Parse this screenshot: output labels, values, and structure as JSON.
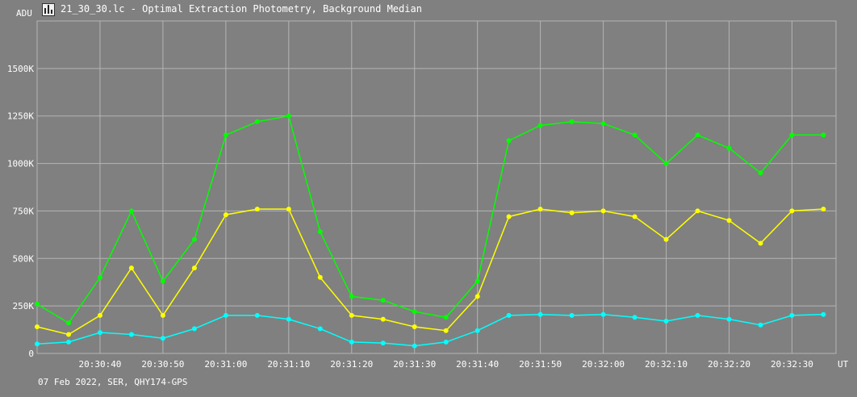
{
  "window": {
    "title": "21_30_30.lc - Optimal Extraction Photometry, Background Median",
    "icon": "light-curve-app-icon"
  },
  "footer": {
    "text": "07 Feb 2022, SER, QHY174-GPS"
  },
  "colors": {
    "background": "#808080",
    "grid": "#b4b4b4",
    "text": "#ffffff",
    "series": [
      "#00ff00",
      "#ffff00",
      "#00ffff"
    ]
  },
  "chart_data": {
    "type": "line",
    "title": "",
    "ylabel": "ADU",
    "xlabel": "UT",
    "ylim": [
      0,
      1750000
    ],
    "xlim": [
      "20:30:30",
      "20:32:37"
    ],
    "grid": true,
    "legend": "none",
    "x_ticks": [
      "20:30:40",
      "20:30:50",
      "20:31:00",
      "20:31:10",
      "20:31:20",
      "20:31:30",
      "20:31:40",
      "20:31:50",
      "20:32:00",
      "20:32:10",
      "20:32:20",
      "20:32:30"
    ],
    "y_ticks": [
      "0",
      "250K",
      "500K",
      "750K",
      "1000K",
      "1250K",
      "1500K"
    ],
    "x": [
      "20:30:30",
      "20:30:35",
      "20:30:40",
      "20:30:45",
      "20:30:50",
      "20:30:55",
      "20:31:00",
      "20:31:05",
      "20:31:10",
      "20:31:15",
      "20:31:20",
      "20:31:25",
      "20:31:30",
      "20:31:35",
      "20:31:40",
      "20:31:45",
      "20:31:50",
      "20:31:55",
      "20:32:00",
      "20:32:05",
      "20:32:10",
      "20:32:15",
      "20:32:20",
      "20:32:25",
      "20:32:30",
      "20:32:35"
    ],
    "series": [
      {
        "color": "#00ff00",
        "values": [
          260000,
          160000,
          400000,
          750000,
          380000,
          600000,
          1150000,
          1220000,
          1250000,
          640000,
          300000,
          280000,
          220000,
          190000,
          380000,
          1120000,
          1200000,
          1220000,
          1210000,
          1150000,
          1000000,
          1150000,
          1080000,
          950000,
          1150000,
          1150000
        ]
      },
      {
        "color": "#ffff00",
        "values": [
          140000,
          100000,
          200000,
          450000,
          200000,
          450000,
          730000,
          760000,
          760000,
          400000,
          200000,
          180000,
          140000,
          120000,
          300000,
          720000,
          760000,
          740000,
          750000,
          720000,
          600000,
          750000,
          700000,
          580000,
          750000,
          760000
        ]
      },
      {
        "color": "#00ffff",
        "values": [
          50000,
          60000,
          110000,
          100000,
          80000,
          130000,
          200000,
          200000,
          180000,
          130000,
          60000,
          55000,
          40000,
          60000,
          120000,
          200000,
          205000,
          200000,
          205000,
          190000,
          170000,
          200000,
          180000,
          150000,
          200000,
          205000
        ]
      }
    ]
  }
}
